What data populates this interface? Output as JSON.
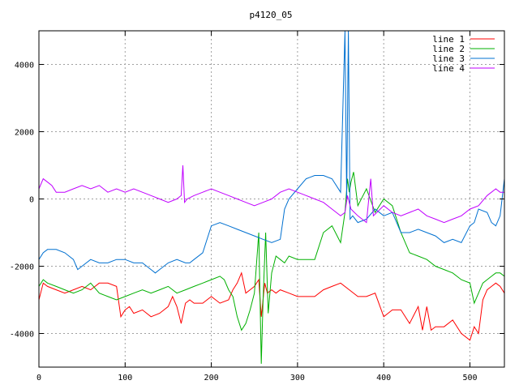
{
  "chart_data": {
    "type": "line",
    "title": "p4120_05",
    "xlabel": "",
    "ylabel": "",
    "xlim": [
      0,
      540
    ],
    "ylim": [
      -5000,
      5000
    ],
    "xticks": [
      0,
      100,
      200,
      300,
      400,
      500
    ],
    "yticks": [
      -4000,
      -2000,
      0,
      2000,
      4000
    ],
    "grid": true,
    "legend_position": "top-right",
    "series": [
      {
        "name": "line 1",
        "color": "#ff0000",
        "x": [
          0,
          5,
          10,
          20,
          30,
          40,
          50,
          60,
          70,
          80,
          90,
          95,
          100,
          105,
          110,
          120,
          130,
          140,
          150,
          155,
          160,
          165,
          170,
          175,
          180,
          190,
          200,
          210,
          220,
          225,
          230,
          235,
          240,
          245,
          250,
          255,
          258,
          262,
          265,
          270,
          275,
          280,
          290,
          300,
          310,
          320,
          330,
          340,
          350,
          360,
          370,
          380,
          390,
          400,
          405,
          410,
          420,
          430,
          440,
          445,
          450,
          455,
          460,
          470,
          480,
          490,
          500,
          505,
          510,
          515,
          520,
          525,
          530,
          535,
          540
        ],
        "y": [
          -3000,
          -2500,
          -2600,
          -2700,
          -2800,
          -2700,
          -2600,
          -2700,
          -2500,
          -2500,
          -2600,
          -3500,
          -3300,
          -3200,
          -3400,
          -3300,
          -3500,
          -3400,
          -3200,
          -2900,
          -3200,
          -3700,
          -3100,
          -3000,
          -3100,
          -3100,
          -2900,
          -3100,
          -3000,
          -2700,
          -2500,
          -2200,
          -2800,
          -2700,
          -2600,
          -2400,
          -3500,
          -2500,
          -2800,
          -2700,
          -2800,
          -2700,
          -2800,
          -2900,
          -2900,
          -2900,
          -2700,
          -2600,
          -2500,
          -2700,
          -2900,
          -2900,
          -2800,
          -3500,
          -3400,
          -3300,
          -3300,
          -3700,
          -3200,
          -3900,
          -3200,
          -3900,
          -3800,
          -3800,
          -3600,
          -4000,
          -4200,
          -3800,
          -4000,
          -3000,
          -2700,
          -2600,
          -2500,
          -2600,
          -2800
        ]
      },
      {
        "name": "line 2",
        "color": "#00b000",
        "x": [
          0,
          5,
          10,
          20,
          30,
          40,
          50,
          60,
          70,
          80,
          90,
          100,
          110,
          120,
          130,
          140,
          150,
          160,
          170,
          180,
          190,
          200,
          210,
          215,
          220,
          225,
          230,
          235,
          240,
          245,
          250,
          255,
          258,
          260,
          263,
          266,
          270,
          275,
          280,
          285,
          290,
          300,
          310,
          320,
          330,
          340,
          350,
          355,
          358,
          360,
          362,
          365,
          370,
          380,
          390,
          400,
          410,
          420,
          430,
          440,
          450,
          460,
          470,
          480,
          490,
          500,
          505,
          510,
          515,
          520,
          525,
          530,
          535,
          540
        ],
        "y": [
          -2600,
          -2400,
          -2500,
          -2600,
          -2700,
          -2800,
          -2700,
          -2500,
          -2800,
          -2900,
          -3000,
          -2900,
          -2800,
          -2700,
          -2800,
          -2700,
          -2600,
          -2800,
          -2700,
          -2600,
          -2500,
          -2400,
          -2300,
          -2400,
          -2700,
          -2900,
          -3500,
          -3900,
          -3700,
          -3300,
          -2800,
          -1000,
          -4900,
          -3000,
          -1000,
          -3400,
          -2200,
          -1700,
          -1800,
          -1900,
          -1700,
          -1800,
          -1800,
          -1800,
          -1000,
          -800,
          -1300,
          -400,
          600,
          200,
          500,
          800,
          -200,
          300,
          -400,
          0,
          -200,
          -1000,
          -1600,
          -1700,
          -1800,
          -2000,
          -2100,
          -2200,
          -2400,
          -2500,
          -3100,
          -2800,
          -2500,
          -2400,
          -2300,
          -2200,
          -2200,
          -2300
        ]
      },
      {
        "name": "line 3",
        "color": "#0070d0",
        "x": [
          0,
          5,
          10,
          20,
          30,
          40,
          45,
          50,
          60,
          70,
          80,
          90,
          100,
          110,
          120,
          130,
          135,
          140,
          150,
          160,
          170,
          175,
          180,
          190,
          200,
          210,
          220,
          230,
          240,
          250,
          260,
          270,
          280,
          285,
          290,
          300,
          310,
          320,
          330,
          340,
          350,
          355,
          357,
          359,
          361,
          364,
          370,
          380,
          390,
          400,
          410,
          420,
          430,
          440,
          450,
          460,
          470,
          480,
          490,
          500,
          505,
          510,
          520,
          525,
          530,
          535,
          540
        ],
        "y": [
          -1800,
          -1600,
          -1500,
          -1500,
          -1600,
          -1800,
          -2100,
          -2000,
          -1800,
          -1900,
          -1900,
          -1800,
          -1800,
          -1900,
          -1900,
          -2100,
          -2200,
          -2100,
          -1900,
          -1800,
          -1900,
          -1900,
          -1800,
          -1600,
          -800,
          -700,
          -800,
          -900,
          -1000,
          -1100,
          -1200,
          -1300,
          -1200,
          -300,
          0,
          300,
          600,
          700,
          700,
          600,
          200,
          5000,
          0,
          5000,
          -600,
          -500,
          -700,
          -600,
          -300,
          -500,
          -400,
          -1000,
          -1000,
          -900,
          -1000,
          -1100,
          -1300,
          -1200,
          -1300,
          -800,
          -700,
          -300,
          -400,
          -700,
          -800,
          -500,
          600
        ]
      },
      {
        "name": "line 4",
        "color": "#c000ff",
        "x": [
          0,
          5,
          10,
          15,
          20,
          30,
          40,
          50,
          60,
          70,
          80,
          90,
          100,
          110,
          120,
          130,
          140,
          150,
          160,
          165,
          167,
          169,
          172,
          180,
          190,
          200,
          210,
          220,
          230,
          240,
          250,
          260,
          270,
          280,
          290,
          300,
          310,
          320,
          330,
          340,
          350,
          355,
          358,
          362,
          366,
          370,
          380,
          385,
          388,
          392,
          400,
          410,
          420,
          430,
          440,
          450,
          460,
          470,
          480,
          490,
          500,
          510,
          520,
          530,
          535,
          540
        ],
        "y": [
          300,
          600,
          500,
          400,
          200,
          200,
          300,
          400,
          300,
          400,
          200,
          300,
          200,
          300,
          200,
          100,
          0,
          -100,
          0,
          100,
          1000,
          -100,
          0,
          100,
          200,
          300,
          200,
          100,
          0,
          -100,
          -200,
          -100,
          0,
          200,
          300,
          200,
          100,
          0,
          -100,
          -300,
          -500,
          -400,
          100,
          -300,
          -400,
          -500,
          -700,
          600,
          -500,
          -400,
          -200,
          -400,
          -500,
          -400,
          -300,
          -500,
          -600,
          -700,
          -600,
          -500,
          -300,
          -200,
          100,
          300,
          200,
          200
        ]
      }
    ]
  }
}
